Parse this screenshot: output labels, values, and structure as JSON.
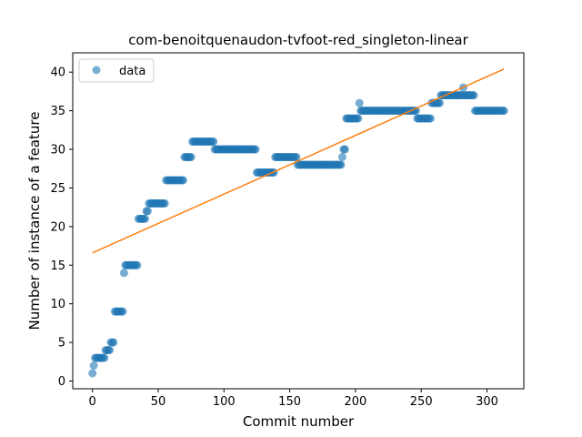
{
  "chart_data": {
    "type": "scatter",
    "title": "com-benoitquenaudon-tvfoot-red_singleton-linear",
    "xlabel": "Commit number",
    "ylabel": "Number of instance of a feature",
    "xlim": [
      -15,
      328
    ],
    "ylim": [
      -1,
      42.5
    ],
    "xticks": [
      0,
      50,
      100,
      150,
      200,
      250,
      300
    ],
    "yticks": [
      0,
      5,
      10,
      15,
      20,
      25,
      30,
      35,
      40
    ],
    "grid": false,
    "legend": {
      "placement": "upper-left",
      "entries": [
        "data"
      ]
    },
    "colors": {
      "data": "#1f77b4",
      "fit": "#ff7f0e"
    },
    "series": [
      {
        "name": "data",
        "kind": "scatter",
        "segments": [
          [
            0,
            0,
            1
          ],
          [
            1,
            1,
            2
          ],
          [
            2,
            9,
            3
          ],
          [
            10,
            13,
            4
          ],
          [
            14,
            16,
            5
          ],
          [
            17,
            23,
            9
          ],
          [
            24,
            24,
            14
          ],
          [
            25,
            34,
            15
          ],
          [
            35,
            40,
            21
          ],
          [
            41,
            42,
            22
          ],
          [
            43,
            55,
            23
          ],
          [
            56,
            69,
            26
          ],
          [
            70,
            75,
            29
          ],
          [
            76,
            92,
            31
          ],
          [
            93,
            124,
            30
          ],
          [
            125,
            138,
            27
          ],
          [
            139,
            155,
            29
          ],
          [
            156,
            189,
            28
          ],
          [
            190,
            190,
            29
          ],
          [
            191,
            192,
            30
          ],
          [
            193,
            202,
            34
          ],
          [
            203,
            203,
            36
          ],
          [
            204,
            246,
            35
          ],
          [
            247,
            257,
            34
          ],
          [
            258,
            264,
            36
          ],
          [
            265,
            281,
            37
          ],
          [
            282,
            282,
            38
          ],
          [
            283,
            290,
            37
          ],
          [
            291,
            313,
            35
          ]
        ]
      },
      {
        "kind": "line",
        "x": [
          0,
          313
        ],
        "y": [
          16.6,
          40.4
        ]
      }
    ]
  }
}
